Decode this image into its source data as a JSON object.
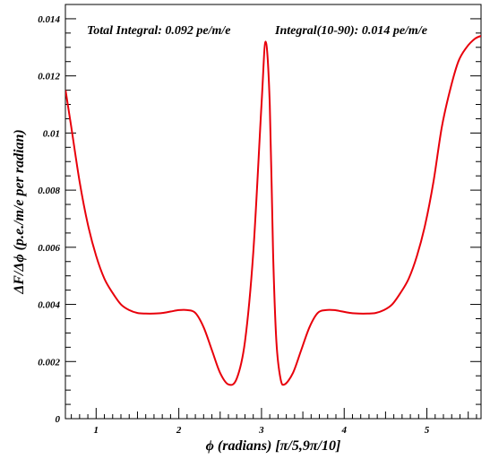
{
  "chart_data": {
    "type": "line",
    "title": "",
    "xlabel": "ϕ (radians) [π/5,9π/10]",
    "ylabel": "ΔF/Δϕ (p.e./m/e per radian)",
    "xlim": [
      0.6283,
      5.6549
    ],
    "ylim": [
      0,
      0.0145
    ],
    "x_ticks": [
      1,
      2,
      3,
      4,
      5
    ],
    "x_tick_labels": [
      "1",
      "2",
      "3",
      "4",
      "5"
    ],
    "y_ticks": [
      0,
      0.002,
      0.004,
      0.006,
      0.008,
      0.01,
      0.012,
      0.014
    ],
    "y_tick_labels": [
      "0",
      "0.002",
      "0.004",
      "0.006",
      "0.008",
      "0.01",
      "0.012",
      "0.014"
    ],
    "grid": false,
    "annotations": [
      "Total Integral: 0.092 pe/m/e",
      "Integral(10-90): 0.014 pe/m/e"
    ],
    "series": [
      {
        "color": "#e8000b",
        "x": [
          0.63,
          0.7,
          0.8,
          0.9,
          1.0,
          1.1,
          1.2,
          1.3,
          1.4,
          1.5,
          1.6,
          1.7,
          1.8,
          1.9,
          2.0,
          2.1,
          2.2,
          2.3,
          2.4,
          2.5,
          2.6,
          2.7,
          2.8,
          2.9,
          3.0,
          3.05,
          3.1,
          3.14,
          3.18,
          3.23,
          3.28,
          3.38,
          3.48,
          3.58,
          3.68,
          3.78,
          3.88,
          3.98,
          4.08,
          4.18,
          4.28,
          4.38,
          4.48,
          4.58,
          4.68,
          4.78,
          4.88,
          4.98,
          5.08,
          5.18,
          5.28,
          5.38,
          5.48,
          5.58,
          5.655
        ],
        "y": [
          0.0115,
          0.0102,
          0.0083,
          0.0068,
          0.0057,
          0.0049,
          0.0044,
          0.004,
          0.0038,
          0.0037,
          0.00368,
          0.00368,
          0.0037,
          0.00375,
          0.0038,
          0.0038,
          0.0037,
          0.0032,
          0.0024,
          0.0016,
          0.0012,
          0.0014,
          0.0027,
          0.0058,
          0.011,
          0.0132,
          0.011,
          0.0058,
          0.0027,
          0.0014,
          0.0012,
          0.0016,
          0.0024,
          0.0032,
          0.0037,
          0.0038,
          0.0038,
          0.00375,
          0.0037,
          0.00368,
          0.00368,
          0.0037,
          0.0038,
          0.004,
          0.0044,
          0.0049,
          0.0057,
          0.0068,
          0.0083,
          0.0102,
          0.0115,
          0.0125,
          0.013,
          0.0133,
          0.0134
        ]
      }
    ]
  }
}
